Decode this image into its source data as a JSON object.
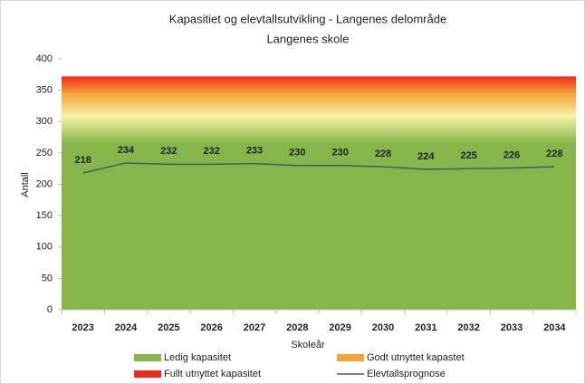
{
  "chart_data": {
    "type": "line",
    "title": "Kapasitiet og elevtallsutvikling - Langenes delområde",
    "subtitle": "Langenes skole",
    "x_label": "Skoleår",
    "y_label": "Antall",
    "categories": [
      "2023",
      "2024",
      "2025",
      "2026",
      "2027",
      "2028",
      "2029",
      "2030",
      "2031",
      "2032",
      "2033",
      "2034"
    ],
    "bands": [
      {
        "name": "Ledig kapasitet",
        "color": "#86b54a",
        "values": [
          265,
          265,
          265,
          265,
          265,
          265,
          265,
          265,
          265,
          265,
          265,
          265
        ]
      },
      {
        "name": "Godt utnyttet kapastet",
        "color": "#f7a234",
        "values": [
          80,
          80,
          80,
          80,
          80,
          80,
          80,
          80,
          80,
          80,
          80,
          80
        ]
      },
      {
        "name": "Fullt utnyttet kapasitet",
        "color": "#ee2a1a",
        "values": [
          27,
          27,
          27,
          27,
          27,
          27,
          27,
          27,
          27,
          27,
          27,
          27
        ]
      }
    ],
    "series": [
      {
        "name": "Elevtallsprognose",
        "color": "#4a5a6a",
        "values": [
          218,
          234,
          232,
          232,
          233,
          230,
          230,
          228,
          224,
          225,
          226,
          228
        ]
      }
    ],
    "ylim": [
      0,
      400
    ],
    "yticks": [
      0,
      50,
      100,
      150,
      200,
      250,
      300,
      350,
      400
    ]
  }
}
